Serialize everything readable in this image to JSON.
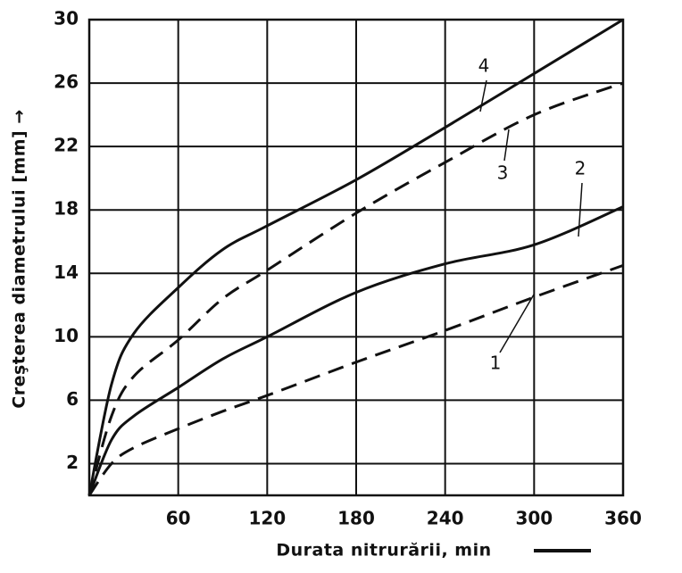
{
  "chart_data": {
    "type": "line",
    "x_label": "Durata nitrurării, min",
    "y_label": "Creşterea diametrului [mm] →",
    "x": [
      0,
      15,
      30,
      60,
      90,
      120,
      180,
      240,
      300,
      360
    ],
    "series": [
      {
        "name": "1",
        "color": "#111111",
        "dashed": true,
        "values": [
          0,
          2,
          3,
          4.2,
          5.3,
          6.3,
          8.4,
          10.4,
          12.5,
          14.5
        ]
      },
      {
        "name": "2",
        "color": "#111111",
        "dashed": false,
        "values": [
          0,
          3.5,
          5,
          6.8,
          8.6,
          10,
          12.8,
          14.6,
          15.8,
          18.2
        ]
      },
      {
        "name": "3",
        "color": "#111111",
        "dashed": true,
        "values": [
          0,
          5,
          7.5,
          9.8,
          12.4,
          14.2,
          17.8,
          21,
          24,
          26
        ]
      },
      {
        "name": "4",
        "color": "#111111",
        "dashed": false,
        "values": [
          0,
          7,
          10.2,
          13.1,
          15.5,
          17,
          19.9,
          23.2,
          26.6,
          30
        ]
      }
    ],
    "xlim": [
      0,
      360
    ],
    "ylim": [
      0,
      30
    ],
    "xticks": [
      60,
      120,
      180,
      240,
      300,
      360
    ],
    "yticks": [
      2,
      6,
      10,
      14,
      18,
      22,
      26,
      30
    ],
    "grid": true
  }
}
